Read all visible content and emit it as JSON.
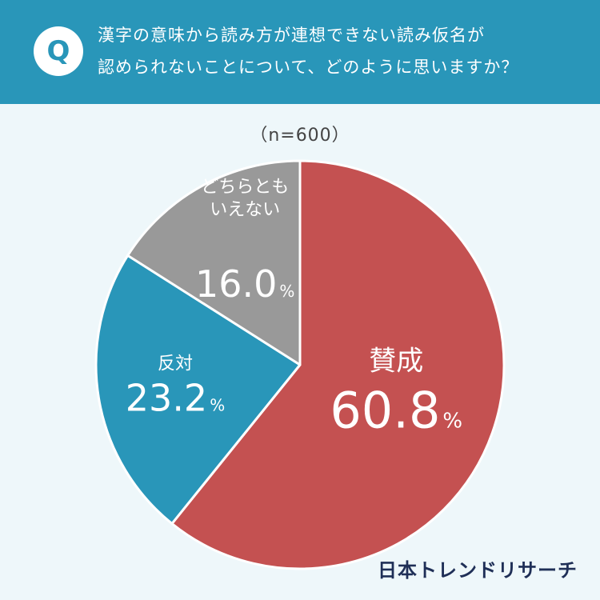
{
  "header": {
    "badge": "Q",
    "question_line1": "漢字の意味から読み方が連想できない読み仮名が",
    "question_line2": "認められないことについて、どのように思いますか？"
  },
  "sample_size": "（n=600）",
  "footer": {
    "brand": "日本トレンドリサーチ"
  },
  "colors": {
    "header_bg": "#2996b9",
    "background": "#eef7fa",
    "agree": "#c45151",
    "disagree": "#2996b9",
    "neutral": "#999999",
    "brand_text": "#1f2f57"
  },
  "chart_data": {
    "type": "pie",
    "slices": [
      {
        "label": "賛成",
        "value": 60.8,
        "display": "60.8",
        "unit": "%",
        "color": "#c45151"
      },
      {
        "label": "反対",
        "value": 23.2,
        "display": "23.2",
        "unit": "%",
        "color": "#2996b9"
      },
      {
        "label": "どちらとも\nいえない",
        "value": 16.0,
        "display": "16.0",
        "unit": "%",
        "color": "#999999"
      }
    ]
  }
}
